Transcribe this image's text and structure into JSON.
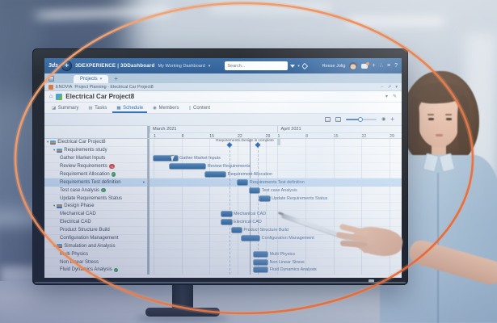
{
  "colors": {
    "topbar_blue": "#2C5B92",
    "accent_blue": "#2E6DA4",
    "bar_blue": "#38699E",
    "selected_row": "#CFE3F7",
    "check_green": "#3D9E5F",
    "alert_red": "#D9453C",
    "enovia_orange": "#E8772E",
    "ring_orange": "#E8743F"
  },
  "topbar": {
    "logo": "3ds",
    "brand": "3DEXPERIENCE",
    "divider": "|",
    "app": "3DDashboard",
    "workspace": "My Working Dashboard",
    "search_placeholder": "Search...",
    "user_name": "Reese Jolig"
  },
  "tabstrip": {
    "tab_label": "Projects",
    "new_tab": "+"
  },
  "breadcrumb": {
    "app": "ENOVIA",
    "path": "Project Planning - Electrical Car Project8"
  },
  "page": {
    "title": "Electrical Car Project8"
  },
  "tabs": [
    {
      "label": "Summary",
      "active": false
    },
    {
      "label": "Tasks",
      "active": false
    },
    {
      "label": "Schedule",
      "active": true
    },
    {
      "label": "Members",
      "active": false
    },
    {
      "label": "Content",
      "active": false
    }
  ],
  "toolbar": {
    "zoom_value": 48
  },
  "icons": {
    "summary": "◪",
    "tasks": "▤",
    "schedule": "▦",
    "members": "◉",
    "content": "▯",
    "home": "⌂",
    "edit": "✎",
    "chevron_down": "▾",
    "minimize": "−",
    "open_new": "↗",
    "add": "+",
    "share": "∴",
    "settings": "≡",
    "help": "?",
    "eye": "◉",
    "compass": "✚",
    "caret_down": "▾",
    "check": "✓"
  },
  "gantt": {
    "day_min": -1,
    "day_max": 62,
    "today_day": 24,
    "months": [
      {
        "label": "March 2021",
        "from": -1,
        "to": 31
      },
      {
        "label": "April 2021",
        "from": 31,
        "to": 62
      }
    ],
    "ticks": [
      {
        "day": 0,
        "label": "1"
      },
      {
        "day": 7,
        "label": "8"
      },
      {
        "day": 14,
        "label": "15"
      },
      {
        "day": 21,
        "label": "22"
      },
      {
        "day": 28,
        "label": "29"
      },
      {
        "day": 31,
        "label": "1"
      },
      {
        "day": 38,
        "label": "8"
      },
      {
        "day": 45,
        "label": "15"
      },
      {
        "day": 52,
        "label": "22"
      },
      {
        "day": 59,
        "label": "29"
      }
    ],
    "milestones": [
      {
        "day": 19,
        "label": "Requirements..."
      },
      {
        "day": 26,
        "label": "Design is complete"
      }
    ],
    "rows": [
      {
        "label": "Electrical Car Project8",
        "level": 0,
        "group": true
      },
      {
        "label": "Requirements study",
        "level": 1,
        "group": true
      },
      {
        "label": "Gather Market Inputs",
        "level": 2,
        "bar": {
          "start": 0,
          "end": 6
        },
        "cursor": true
      },
      {
        "label": "Review Requirements",
        "level": 2,
        "badge": "+1",
        "bar": {
          "start": 4,
          "end": 13
        }
      },
      {
        "label": "Requirement Allocation",
        "level": 2,
        "check": true,
        "bar": {
          "start": 13,
          "end": 18
        }
      },
      {
        "label": "Requirements Test definition",
        "level": 2,
        "selected": true,
        "bar": {
          "start": 21,
          "end": 23.5
        }
      },
      {
        "label": "Test case Analysis",
        "level": 2,
        "check": true,
        "bar": {
          "start": 24,
          "end": 26.5
        }
      },
      {
        "label": "Update Requirements Status",
        "level": 2,
        "bar": {
          "start": 26.5,
          "end": 29
        }
      },
      {
        "label": "Design Phase",
        "level": 1,
        "group": true
      },
      {
        "label": "Mechanical CAD",
        "level": 2,
        "bar": {
          "start": 17,
          "end": 19.5
        }
      },
      {
        "label": "Electrical CAD",
        "level": 2,
        "bar": {
          "start": 17,
          "end": 19.5
        }
      },
      {
        "label": "Product Structure Build",
        "level": 2,
        "bar": {
          "start": 19.5,
          "end": 22
        }
      },
      {
        "label": "Configuration Management",
        "level": 2,
        "bar": {
          "start": 22,
          "end": 26.5
        }
      },
      {
        "label": "Simulation and Analysis",
        "level": 1,
        "group": true
      },
      {
        "label": "Multi Physics",
        "level": 2,
        "bar": {
          "start": 25,
          "end": 28.5
        }
      },
      {
        "label": "Non Linear Stress",
        "level": 2,
        "bar": {
          "start": 25,
          "end": 28.5
        }
      },
      {
        "label": "Fluid Dynamics Analysis",
        "level": 2,
        "check": true,
        "bar": {
          "start": 25,
          "end": 28.5
        }
      }
    ]
  }
}
